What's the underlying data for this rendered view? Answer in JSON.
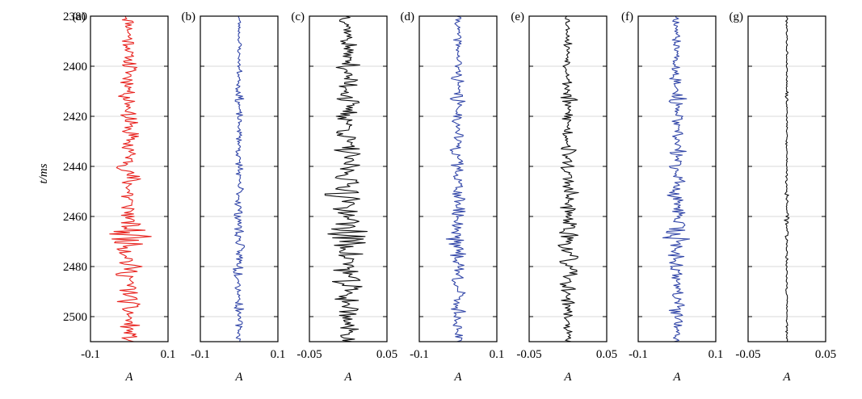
{
  "figure": {
    "y_axis_label": "t/ms",
    "y_tick_labels": [
      "2380",
      "2400",
      "2420",
      "2440",
      "2460",
      "2480",
      "2500"
    ]
  },
  "chart_data": [
    {
      "panel_label": "(a)",
      "type": "line",
      "orientation": "vertical-trace",
      "color": "#e8231f",
      "xlim": [
        -0.1,
        0.1
      ],
      "x_tick_labels": [
        "-0.1",
        "0.1"
      ],
      "xlabel": "A",
      "ylabel": "t/ms",
      "ylim": [
        2380,
        2510
      ],
      "y_ticks": [
        2380,
        2400,
        2420,
        2440,
        2460,
        2480,
        2500
      ],
      "series": [
        {
          "seed": 11,
          "sample_interval_ms": 0.5,
          "mean_amplitude": 0.0,
          "bursts": [
            {
              "t": 2381,
              "amp": 0.022
            },
            {
              "t": 2390,
              "amp": 0.024
            },
            {
              "t": 2400,
              "amp": 0.028
            },
            {
              "t": 2405,
              "amp": 0.034
            },
            {
              "t": 2413,
              "amp": 0.035
            },
            {
              "t": 2421,
              "amp": 0.032
            },
            {
              "t": 2427,
              "amp": 0.03
            },
            {
              "t": 2433,
              "amp": 0.036
            },
            {
              "t": 2440,
              "amp": 0.034
            },
            {
              "t": 2445,
              "amp": 0.036
            },
            {
              "t": 2452,
              "amp": 0.042
            },
            {
              "t": 2458,
              "amp": 0.033
            },
            {
              "t": 2464,
              "amp": 0.035
            },
            {
              "t": 2467.5,
              "amp": 0.075
            },
            {
              "t": 2470,
              "amp": 0.04
            },
            {
              "t": 2474,
              "amp": 0.038
            },
            {
              "t": 2479,
              "amp": 0.04
            },
            {
              "t": 2483,
              "amp": 0.036
            },
            {
              "t": 2489,
              "amp": 0.033
            },
            {
              "t": 2494,
              "amp": 0.032
            },
            {
              "t": 2497.5,
              "amp": 0.036
            },
            {
              "t": 2503,
              "amp": 0.028
            },
            {
              "t": 2508,
              "amp": 0.022
            }
          ]
        }
      ]
    },
    {
      "panel_label": "(b)",
      "type": "line",
      "orientation": "vertical-trace",
      "color": "#3347a8",
      "xlim": [
        -0.1,
        0.1
      ],
      "x_tick_labels": [
        "-0.1",
        "0.1"
      ],
      "xlabel": "A",
      "ylim": [
        2380,
        2510
      ],
      "y_ticks": [
        2380,
        2400,
        2420,
        2440,
        2460,
        2480,
        2500
      ],
      "series": [
        {
          "seed": 23,
          "sample_interval_ms": 0.5,
          "mean_amplitude": 0.0,
          "bursts": [
            {
              "t": 2382,
              "amp": 0.006
            },
            {
              "t": 2392,
              "amp": 0.008
            },
            {
              "t": 2402,
              "amp": 0.008
            },
            {
              "t": 2409,
              "amp": 0.01
            },
            {
              "t": 2413,
              "amp": 0.012
            },
            {
              "t": 2420,
              "amp": 0.01
            },
            {
              "t": 2428,
              "amp": 0.01
            },
            {
              "t": 2434,
              "amp": 0.012
            },
            {
              "t": 2441,
              "amp": 0.016
            },
            {
              "t": 2449,
              "amp": 0.014
            },
            {
              "t": 2455,
              "amp": 0.012
            },
            {
              "t": 2460,
              "amp": 0.014
            },
            {
              "t": 2466,
              "amp": 0.016
            },
            {
              "t": 2472,
              "amp": 0.014
            },
            {
              "t": 2477,
              "amp": 0.016
            },
            {
              "t": 2482,
              "amp": 0.02
            },
            {
              "t": 2489,
              "amp": 0.012
            },
            {
              "t": 2496,
              "amp": 0.014
            },
            {
              "t": 2503,
              "amp": 0.01
            },
            {
              "t": 2508,
              "amp": 0.008
            }
          ]
        }
      ]
    },
    {
      "panel_label": "(c)",
      "type": "line",
      "orientation": "vertical-trace",
      "color": "#111111",
      "xlim": [
        -0.05,
        0.05
      ],
      "x_tick_labels": [
        "-0.05",
        "0.05"
      ],
      "xlabel": "A",
      "ylim": [
        2380,
        2510
      ],
      "y_ticks": [
        2380,
        2400,
        2420,
        2440,
        2460,
        2480,
        2500
      ],
      "series": [
        {
          "seed": 37,
          "sample_interval_ms": 0.5,
          "mean_amplitude": 0.0,
          "bursts": [
            {
              "t": 2382,
              "amp": 0.012
            },
            {
              "t": 2391,
              "amp": 0.014
            },
            {
              "t": 2400,
              "amp": 0.016
            },
            {
              "t": 2407,
              "amp": 0.018
            },
            {
              "t": 2413,
              "amp": 0.022
            },
            {
              "t": 2420,
              "amp": 0.018
            },
            {
              "t": 2427,
              "amp": 0.018
            },
            {
              "t": 2434,
              "amp": 0.02
            },
            {
              "t": 2440,
              "amp": 0.018
            },
            {
              "t": 2445,
              "amp": 0.02
            },
            {
              "t": 2451,
              "amp": 0.033
            },
            {
              "t": 2457,
              "amp": 0.02
            },
            {
              "t": 2463,
              "amp": 0.02
            },
            {
              "t": 2467,
              "amp": 0.04
            },
            {
              "t": 2471,
              "amp": 0.025
            },
            {
              "t": 2476,
              "amp": 0.025
            },
            {
              "t": 2481,
              "amp": 0.022
            },
            {
              "t": 2487,
              "amp": 0.025
            },
            {
              "t": 2493,
              "amp": 0.02
            },
            {
              "t": 2498,
              "amp": 0.022
            },
            {
              "t": 2504,
              "amp": 0.016
            },
            {
              "t": 2509,
              "amp": 0.014
            }
          ]
        }
      ]
    },
    {
      "panel_label": "(d)",
      "type": "line",
      "orientation": "vertical-trace",
      "color": "#3347a8",
      "xlim": [
        -0.1,
        0.1
      ],
      "x_tick_labels": [
        "-0.1",
        "0.1"
      ],
      "xlabel": "A",
      "ylim": [
        2380,
        2510
      ],
      "y_ticks": [
        2380,
        2400,
        2420,
        2440,
        2460,
        2480,
        2500
      ],
      "series": [
        {
          "seed": 41,
          "sample_interval_ms": 0.5,
          "mean_amplitude": 0.0,
          "bursts": [
            {
              "t": 2382,
              "amp": 0.01
            },
            {
              "t": 2390,
              "amp": 0.012
            },
            {
              "t": 2400,
              "amp": 0.016
            },
            {
              "t": 2405,
              "amp": 0.018
            },
            {
              "t": 2413,
              "amp": 0.024
            },
            {
              "t": 2421,
              "amp": 0.018
            },
            {
              "t": 2428,
              "amp": 0.018
            },
            {
              "t": 2434,
              "amp": 0.022
            },
            {
              "t": 2440,
              "amp": 0.022
            },
            {
              "t": 2446,
              "amp": 0.022
            },
            {
              "t": 2452,
              "amp": 0.026
            },
            {
              "t": 2458,
              "amp": 0.02
            },
            {
              "t": 2464,
              "amp": 0.022
            },
            {
              "t": 2467.5,
              "amp": 0.05
            },
            {
              "t": 2471,
              "amp": 0.026
            },
            {
              "t": 2475,
              "amp": 0.025
            },
            {
              "t": 2480,
              "amp": 0.026
            },
            {
              "t": 2485,
              "amp": 0.022
            },
            {
              "t": 2490,
              "amp": 0.02
            },
            {
              "t": 2495,
              "amp": 0.02
            },
            {
              "t": 2498,
              "amp": 0.024
            },
            {
              "t": 2503,
              "amp": 0.016
            },
            {
              "t": 2508,
              "amp": 0.012
            }
          ]
        }
      ]
    },
    {
      "panel_label": "(e)",
      "type": "line",
      "orientation": "vertical-trace",
      "color": "#111111",
      "xlim": [
        -0.05,
        0.05
      ],
      "x_tick_labels": [
        "-0.05",
        "0.05"
      ],
      "xlabel": "A",
      "ylim": [
        2380,
        2510
      ],
      "y_ticks": [
        2380,
        2400,
        2420,
        2440,
        2460,
        2480,
        2500
      ],
      "series": [
        {
          "seed": 53,
          "sample_interval_ms": 0.5,
          "mean_amplitude": 0.0,
          "bursts": [
            {
              "t": 2382,
              "amp": 0.005
            },
            {
              "t": 2391,
              "amp": 0.006
            },
            {
              "t": 2400,
              "amp": 0.007
            },
            {
              "t": 2408,
              "amp": 0.009
            },
            {
              "t": 2413,
              "amp": 0.014
            },
            {
              "t": 2420,
              "amp": 0.01
            },
            {
              "t": 2427,
              "amp": 0.01
            },
            {
              "t": 2434,
              "amp": 0.012
            },
            {
              "t": 2440,
              "amp": 0.012
            },
            {
              "t": 2446,
              "amp": 0.012
            },
            {
              "t": 2451,
              "amp": 0.018
            },
            {
              "t": 2457,
              "amp": 0.012
            },
            {
              "t": 2463,
              "amp": 0.012
            },
            {
              "t": 2468,
              "amp": 0.016
            },
            {
              "t": 2472,
              "amp": 0.014
            },
            {
              "t": 2477,
              "amp": 0.015
            },
            {
              "t": 2482,
              "amp": 0.014
            },
            {
              "t": 2488,
              "amp": 0.012
            },
            {
              "t": 2494,
              "amp": 0.01
            },
            {
              "t": 2499,
              "amp": 0.008
            },
            {
              "t": 2505,
              "amp": 0.006
            },
            {
              "t": 2509,
              "amp": 0.005
            }
          ]
        }
      ]
    },
    {
      "panel_label": "(f)",
      "type": "line",
      "orientation": "vertical-trace",
      "color": "#3347a8",
      "xlim": [
        -0.1,
        0.1
      ],
      "x_tick_labels": [
        "-0.1",
        "0.1"
      ],
      "xlabel": "A",
      "ylim": [
        2380,
        2510
      ],
      "y_ticks": [
        2380,
        2400,
        2420,
        2440,
        2460,
        2480,
        2500
      ],
      "series": [
        {
          "seed": 67,
          "sample_interval_ms": 0.5,
          "mean_amplitude": 0.0,
          "bursts": [
            {
              "t": 2382,
              "amp": 0.012
            },
            {
              "t": 2390,
              "amp": 0.014
            },
            {
              "t": 2400,
              "amp": 0.018
            },
            {
              "t": 2405,
              "amp": 0.02
            },
            {
              "t": 2413,
              "amp": 0.026
            },
            {
              "t": 2421,
              "amp": 0.02
            },
            {
              "t": 2428,
              "amp": 0.02
            },
            {
              "t": 2434,
              "amp": 0.024
            },
            {
              "t": 2440,
              "amp": 0.024
            },
            {
              "t": 2446,
              "amp": 0.024
            },
            {
              "t": 2452,
              "amp": 0.03
            },
            {
              "t": 2458,
              "amp": 0.022
            },
            {
              "t": 2464,
              "amp": 0.024
            },
            {
              "t": 2467.5,
              "amp": 0.052
            },
            {
              "t": 2471,
              "amp": 0.028
            },
            {
              "t": 2475,
              "amp": 0.027
            },
            {
              "t": 2480,
              "amp": 0.028
            },
            {
              "t": 2485,
              "amp": 0.024
            },
            {
              "t": 2490,
              "amp": 0.022
            },
            {
              "t": 2495,
              "amp": 0.022
            },
            {
              "t": 2497.5,
              "amp": 0.026
            },
            {
              "t": 2503,
              "amp": 0.018
            },
            {
              "t": 2508,
              "amp": 0.014
            }
          ]
        }
      ]
    },
    {
      "panel_label": "(g)",
      "type": "line",
      "orientation": "vertical-trace",
      "color": "#111111",
      "xlim": [
        -0.05,
        0.05
      ],
      "x_tick_labels": [
        "-0.05",
        "0.05"
      ],
      "xlabel": "A",
      "ylim": [
        2380,
        2510
      ],
      "y_ticks": [
        2380,
        2400,
        2420,
        2440,
        2460,
        2480,
        2500
      ],
      "series": [
        {
          "seed": 79,
          "sample_interval_ms": 0.5,
          "mean_amplitude": 0.0,
          "bursts": [
            {
              "t": 2382,
              "amp": 0.0015
            },
            {
              "t": 2395,
              "amp": 0.0018
            },
            {
              "t": 2412,
              "amp": 0.0025
            },
            {
              "t": 2430,
              "amp": 0.002
            },
            {
              "t": 2446,
              "amp": 0.0025
            },
            {
              "t": 2452,
              "amp": 0.003
            },
            {
              "t": 2461,
              "amp": 0.0035
            },
            {
              "t": 2468,
              "amp": 0.003
            },
            {
              "t": 2478,
              "amp": 0.0028
            },
            {
              "t": 2490,
              "amp": 0.0022
            },
            {
              "t": 2505,
              "amp": 0.0018
            }
          ]
        }
      ]
    }
  ]
}
